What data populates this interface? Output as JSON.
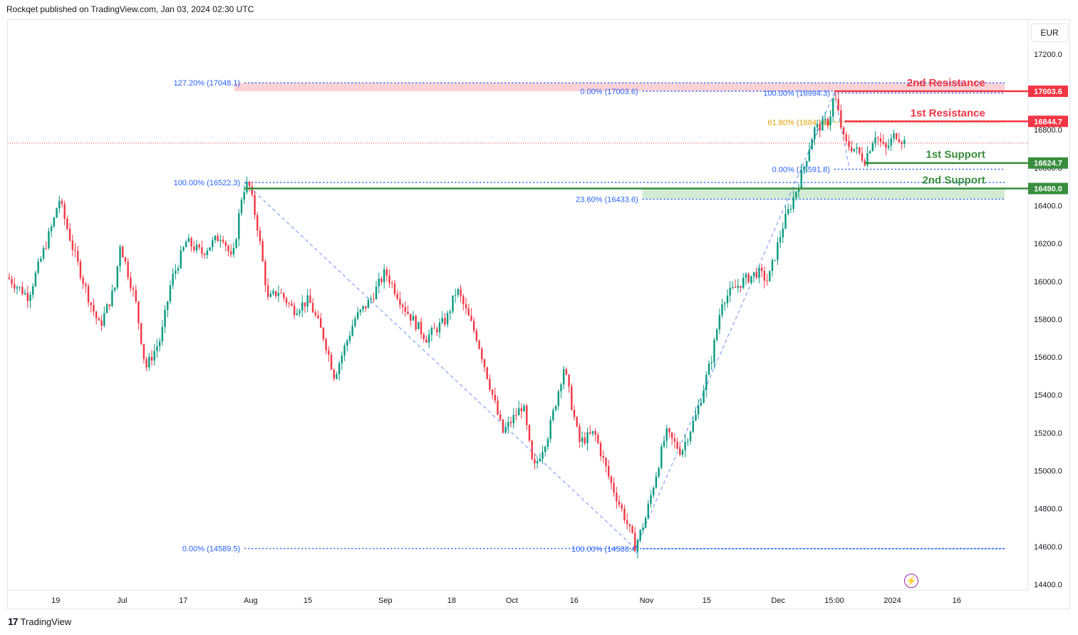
{
  "header": {
    "publisher_text": "Rockqet published on TradingView.com, Jan 03, 2024 02:30 UTC"
  },
  "currency": "EUR",
  "footer": {
    "brand": "TradingView"
  },
  "icons": {
    "logo": "tradingview-logo-icon",
    "event": "lightning-bolt-icon"
  },
  "chart_data": {
    "type": "candlestick",
    "y_ticks": [
      "17200.0",
      "17000.0",
      "16800.0",
      "16600.0",
      "16400.0",
      "16200.0",
      "16000.0",
      "15800.0",
      "15600.0",
      "15400.0",
      "15200.0",
      "15000.0",
      "14800.0",
      "14600.0",
      "14400.0"
    ],
    "ylim": [
      14370,
      17380
    ],
    "x_ticks": [
      {
        "label": "19",
        "pos": 0.047
      },
      {
        "label": "Jul",
        "pos": 0.112
      },
      {
        "label": "17",
        "pos": 0.172
      },
      {
        "label": "Aug",
        "pos": 0.238
      },
      {
        "label": "15",
        "pos": 0.294
      },
      {
        "label": "Sep",
        "pos": 0.37
      },
      {
        "label": "18",
        "pos": 0.435
      },
      {
        "label": "Oct",
        "pos": 0.494
      },
      {
        "label": "16",
        "pos": 0.555
      },
      {
        "label": "Nov",
        "pos": 0.626
      },
      {
        "label": "15",
        "pos": 0.685
      },
      {
        "label": "Dec",
        "pos": 0.755
      },
      {
        "label": "15:00",
        "pos": 0.81
      },
      {
        "label": "2024",
        "pos": 0.867
      },
      {
        "label": "16",
        "pos": 0.93
      }
    ],
    "path": [
      [
        0.0,
        16020
      ],
      [
        0.02,
        15920
      ],
      [
        0.045,
        16320
      ],
      [
        0.05,
        16440
      ],
      [
        0.065,
        16150
      ],
      [
        0.08,
        15900
      ],
      [
        0.09,
        15760
      ],
      [
        0.105,
        15970
      ],
      [
        0.11,
        16200
      ],
      [
        0.125,
        15900
      ],
      [
        0.135,
        15540
      ],
      [
        0.15,
        15700
      ],
      [
        0.16,
        16000
      ],
      [
        0.175,
        16210
      ],
      [
        0.19,
        16150
      ],
      [
        0.21,
        16250
      ],
      [
        0.22,
        16100
      ],
      [
        0.23,
        16480
      ],
      [
        0.236,
        16520
      ],
      [
        0.245,
        16280
      ],
      [
        0.255,
        15900
      ],
      [
        0.265,
        15950
      ],
      [
        0.28,
        15850
      ],
      [
        0.295,
        15900
      ],
      [
        0.31,
        15700
      ],
      [
        0.32,
        15500
      ],
      [
        0.34,
        15800
      ],
      [
        0.355,
        15900
      ],
      [
        0.37,
        16050
      ],
      [
        0.39,
        15850
      ],
      [
        0.41,
        15700
      ],
      [
        0.43,
        15800
      ],
      [
        0.44,
        15960
      ],
      [
        0.46,
        15700
      ],
      [
        0.475,
        15400
      ],
      [
        0.485,
        15200
      ],
      [
        0.505,
        15350
      ],
      [
        0.515,
        15000
      ],
      [
        0.53,
        15200
      ],
      [
        0.545,
        15550
      ],
      [
        0.56,
        15150
      ],
      [
        0.575,
        15200
      ],
      [
        0.59,
        14950
      ],
      [
        0.605,
        14750
      ],
      [
        0.615,
        14600
      ],
      [
        0.625,
        14750
      ],
      [
        0.645,
        15200
      ],
      [
        0.66,
        15100
      ],
      [
        0.675,
        15300
      ],
      [
        0.69,
        15600
      ],
      [
        0.7,
        15900
      ],
      [
        0.72,
        16000
      ],
      [
        0.735,
        16050
      ],
      [
        0.745,
        16000
      ],
      [
        0.76,
        16300
      ],
      [
        0.77,
        16440
      ],
      [
        0.78,
        16600
      ],
      [
        0.79,
        16800
      ],
      [
        0.805,
        16850
      ],
      [
        0.81,
        16990
      ],
      [
        0.82,
        16730
      ],
      [
        0.83,
        16700
      ],
      [
        0.84,
        16640
      ],
      [
        0.85,
        16780
      ],
      [
        0.86,
        16690
      ],
      [
        0.87,
        16780
      ],
      [
        0.88,
        16730
      ]
    ],
    "fib_lines": [
      {
        "label": "127.20% (17048.1)",
        "value": 17048.1,
        "color": "#2962ff"
      },
      {
        "label": "0.00% (17003.6)",
        "value": 17003.6,
        "color": "#2962ff"
      },
      {
        "label": "100.00% (16994.3)",
        "value": 16994.3,
        "color": "#2962ff"
      },
      {
        "label": "61.80% (16840.6)",
        "value": 16840.6,
        "color": "#e0a000"
      },
      {
        "label": "0.00% (16591.8)",
        "value": 16591.8,
        "color": "#2962ff"
      },
      {
        "label": "100.00% (16522.3)",
        "value": 16522.3,
        "color": "#2962ff"
      },
      {
        "label": "23.60% (16433.6)",
        "value": 16433.6,
        "color": "#2962ff"
      },
      {
        "label": "0.00% (14589.5)",
        "value": 14589.5,
        "color": "#2962ff"
      },
      {
        "label": "100.00% (14588.4)",
        "value": 14588.4,
        "color": "#2962ff"
      }
    ],
    "levels": [
      {
        "name": "2nd Resistance",
        "value": 17003.6,
        "price_label": "17003.6",
        "color": "#f23645"
      },
      {
        "name": "1st Resistance",
        "value": 16844.7,
        "price_label": "16844.7",
        "color": "#f23645"
      },
      {
        "name": "1st Support",
        "value": 16624.7,
        "price_label": "16624.7",
        "color": "#388e3c"
      },
      {
        "name": "2nd Support",
        "value": 16490.0,
        "price_label": "16490.0",
        "color": "#388e3c"
      }
    ],
    "current_price": 16730,
    "colors": {
      "up": "#089981",
      "down": "#f23645",
      "fib": "#2962ff"
    }
  }
}
